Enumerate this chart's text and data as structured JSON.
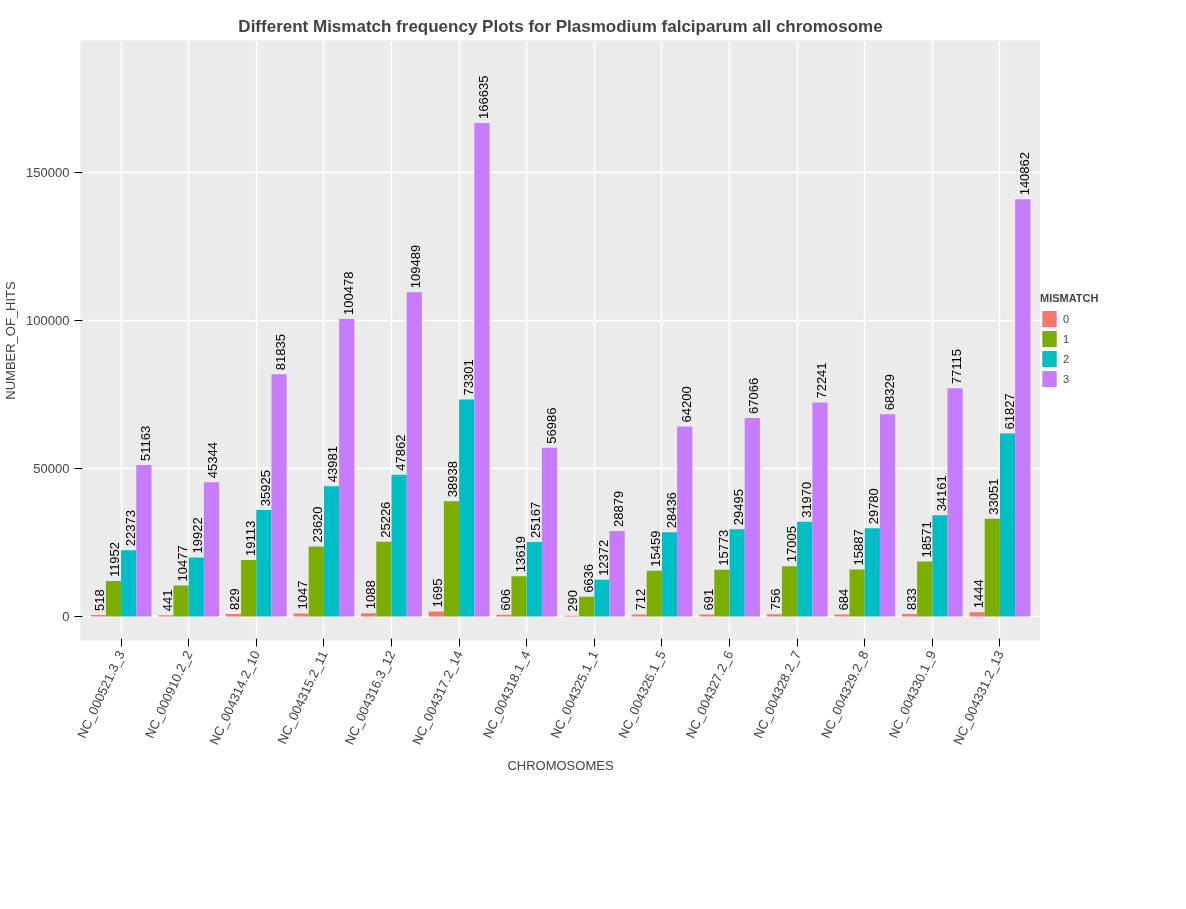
{
  "chart_data": {
    "type": "bar",
    "title": "Different Mismatch frequency Plots for Plasmodium falciparum all chromosome",
    "xlabel": "CHROMOSOMES",
    "ylabel": "NUMBER_OF_HITS",
    "legend_title": "MISMATCH",
    "categories": [
      "NC_000521.3_3",
      "NC_000910.2_2",
      "NC_004314.2_10",
      "NC_004315.2_11",
      "NC_004316.3_12",
      "NC_004317.2_14",
      "NC_004318.1_4",
      "NC_004325.1_1",
      "NC_004326.1_5",
      "NC_004327.2_6",
      "NC_004328.2_7",
      "NC_004329.2_8",
      "NC_004330.1_9",
      "NC_004331.2_13"
    ],
    "series": [
      {
        "name": "0",
        "color": "#f8766d",
        "values": [
          518,
          441,
          829,
          1047,
          1088,
          1695,
          606,
          290,
          712,
          691,
          756,
          684,
          833,
          1444
        ]
      },
      {
        "name": "1",
        "color": "#7cae00",
        "values": [
          11952,
          10477,
          19113,
          23620,
          25226,
          38938,
          13619,
          6636,
          15459,
          15773,
          17005,
          15887,
          18571,
          33051
        ]
      },
      {
        "name": "2",
        "color": "#00bfc4",
        "values": [
          22373,
          19922,
          35925,
          43981,
          47862,
          73301,
          25167,
          12372,
          28436,
          29495,
          31970,
          29780,
          34161,
          61827
        ]
      },
      {
        "name": "3",
        "color": "#c77cff",
        "values": [
          51163,
          45344,
          81835,
          100478,
          109489,
          166635,
          56986,
          28879,
          64200,
          67066,
          72241,
          68329,
          77115,
          140862
        ]
      }
    ],
    "ylim": [
      -8100,
      194500
    ],
    "yticks": [
      0,
      50000,
      100000,
      150000
    ],
    "grid": true,
    "legend": "right",
    "data_labels": true
  }
}
